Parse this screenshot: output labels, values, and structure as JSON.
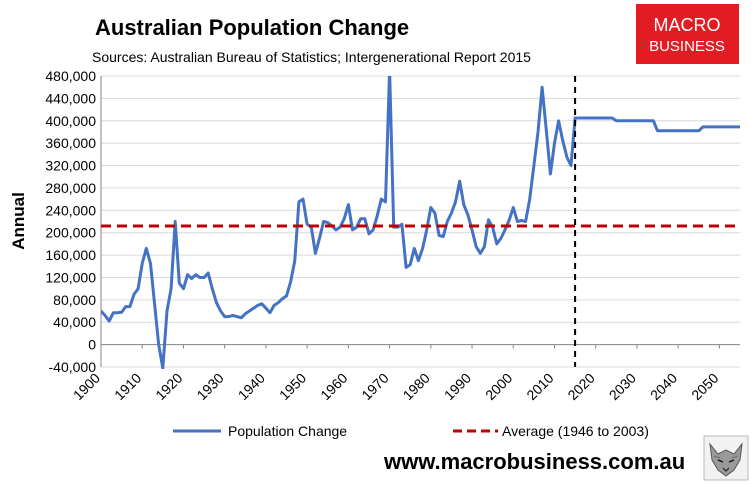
{
  "chart_data": {
    "type": "line",
    "title": "Australian Population Change",
    "subtitle": "Sources: Australian Bureau of Statistics; Intergenerational Report 2015",
    "ylabel": "Annual",
    "xlabel": "",
    "xlim": [
      1900,
      2055
    ],
    "ylim": [
      -40000,
      480000
    ],
    "grid": "horizontal",
    "legend_position": "bottom",
    "x_ticks": [
      "1900",
      "1910",
      "1920",
      "1930",
      "1940",
      "1950",
      "1960",
      "1970",
      "1980",
      "1990",
      "2000",
      "2010",
      "2020",
      "2030",
      "2040",
      "2050"
    ],
    "y_ticks": [
      "-40,000",
      "0",
      "40,000",
      "80,000",
      "120,000",
      "160,000",
      "200,000",
      "240,000",
      "280,000",
      "320,000",
      "360,000",
      "400,000",
      "440,000",
      "480,000"
    ],
    "series": [
      {
        "name": "Population Change",
        "color": "#4472c4",
        "style": "solid",
        "points": [
          [
            1900,
            60000
          ],
          [
            1901,
            52000
          ],
          [
            1902,
            42000
          ],
          [
            1903,
            57000
          ],
          [
            1904,
            57000
          ],
          [
            1905,
            58000
          ],
          [
            1906,
            68000
          ],
          [
            1907,
            68000
          ],
          [
            1908,
            90000
          ],
          [
            1909,
            100000
          ],
          [
            1910,
            145000
          ],
          [
            1911,
            172000
          ],
          [
            1912,
            145000
          ],
          [
            1913,
            72000
          ],
          [
            1914,
            0
          ],
          [
            1915,
            -42000
          ],
          [
            1916,
            60000
          ],
          [
            1917,
            100000
          ],
          [
            1918,
            220000
          ],
          [
            1919,
            110000
          ],
          [
            1920,
            100000
          ],
          [
            1921,
            125000
          ],
          [
            1922,
            118000
          ],
          [
            1923,
            125000
          ],
          [
            1924,
            120000
          ],
          [
            1925,
            120000
          ],
          [
            1926,
            128000
          ],
          [
            1927,
            100000
          ],
          [
            1928,
            75000
          ],
          [
            1929,
            60000
          ],
          [
            1930,
            50000
          ],
          [
            1931,
            50000
          ],
          [
            1932,
            52000
          ],
          [
            1933,
            50000
          ],
          [
            1934,
            48000
          ],
          [
            1935,
            55000
          ],
          [
            1936,
            60000
          ],
          [
            1937,
            65000
          ],
          [
            1938,
            70000
          ],
          [
            1939,
            73000
          ],
          [
            1940,
            65000
          ],
          [
            1941,
            57000
          ],
          [
            1942,
            70000
          ],
          [
            1943,
            75000
          ],
          [
            1944,
            82000
          ],
          [
            1945,
            87000
          ],
          [
            1946,
            112000
          ],
          [
            1947,
            150000
          ],
          [
            1948,
            255000
          ],
          [
            1949,
            260000
          ],
          [
            1950,
            215000
          ],
          [
            1951,
            210000
          ],
          [
            1952,
            163000
          ],
          [
            1953,
            190000
          ],
          [
            1954,
            220000
          ],
          [
            1955,
            218000
          ],
          [
            1956,
            212000
          ],
          [
            1957,
            205000
          ],
          [
            1958,
            210000
          ],
          [
            1959,
            225000
          ],
          [
            1960,
            250000
          ],
          [
            1961,
            205000
          ],
          [
            1962,
            210000
          ],
          [
            1963,
            225000
          ],
          [
            1964,
            225000
          ],
          [
            1965,
            198000
          ],
          [
            1966,
            205000
          ],
          [
            1967,
            230000
          ],
          [
            1968,
            260000
          ],
          [
            1969,
            255000
          ],
          [
            1970,
            490000
          ],
          [
            1971,
            210000
          ],
          [
            1972,
            210000
          ],
          [
            1973,
            215000
          ],
          [
            1974,
            138000
          ],
          [
            1975,
            143000
          ],
          [
            1976,
            172000
          ],
          [
            1977,
            150000
          ],
          [
            1978,
            172000
          ],
          [
            1979,
            205000
          ],
          [
            1980,
            245000
          ],
          [
            1981,
            235000
          ],
          [
            1982,
            195000
          ],
          [
            1983,
            193000
          ],
          [
            1984,
            220000
          ],
          [
            1985,
            235000
          ],
          [
            1986,
            255000
          ],
          [
            1987,
            292000
          ],
          [
            1988,
            250000
          ],
          [
            1989,
            232000
          ],
          [
            1990,
            205000
          ],
          [
            1991,
            175000
          ],
          [
            1992,
            163000
          ],
          [
            1993,
            175000
          ],
          [
            1994,
            223000
          ],
          [
            1995,
            210000
          ],
          [
            1996,
            180000
          ],
          [
            1997,
            190000
          ],
          [
            1998,
            205000
          ],
          [
            1999,
            222000
          ],
          [
            2000,
            245000
          ],
          [
            2001,
            220000
          ],
          [
            2002,
            222000
          ],
          [
            2003,
            220000
          ],
          [
            2004,
            260000
          ],
          [
            2005,
            320000
          ],
          [
            2006,
            380000
          ],
          [
            2007,
            460000
          ],
          [
            2008,
            385000
          ],
          [
            2009,
            305000
          ],
          [
            2010,
            360000
          ],
          [
            2011,
            400000
          ],
          [
            2012,
            365000
          ],
          [
            2013,
            335000
          ],
          [
            2014,
            320000
          ],
          [
            2015,
            405000
          ],
          [
            2016,
            405000
          ],
          [
            2017,
            405000
          ],
          [
            2018,
            405000
          ],
          [
            2019,
            405000
          ],
          [
            2020,
            405000
          ],
          [
            2021,
            405000
          ],
          [
            2022,
            405000
          ],
          [
            2023,
            405000
          ],
          [
            2024,
            405000
          ],
          [
            2025,
            400000
          ],
          [
            2026,
            400000
          ],
          [
            2027,
            400000
          ],
          [
            2028,
            400000
          ],
          [
            2029,
            400000
          ],
          [
            2030,
            400000
          ],
          [
            2031,
            400000
          ],
          [
            2032,
            400000
          ],
          [
            2033,
            400000
          ],
          [
            2034,
            400000
          ],
          [
            2035,
            382000
          ],
          [
            2036,
            382000
          ],
          [
            2037,
            382000
          ],
          [
            2038,
            382000
          ],
          [
            2039,
            382000
          ],
          [
            2040,
            382000
          ],
          [
            2041,
            382000
          ],
          [
            2042,
            382000
          ],
          [
            2043,
            382000
          ],
          [
            2044,
            382000
          ],
          [
            2045,
            382000
          ],
          [
            2046,
            389000
          ],
          [
            2047,
            389000
          ],
          [
            2048,
            389000
          ],
          [
            2049,
            389000
          ],
          [
            2050,
            389000
          ],
          [
            2051,
            389000
          ],
          [
            2052,
            389000
          ],
          [
            2053,
            389000
          ],
          [
            2054,
            389000
          ],
          [
            2055,
            389000
          ]
        ]
      },
      {
        "name": "Average (1946 to 2003)",
        "color": "#c00000",
        "style": "dashed",
        "points": [
          [
            1900,
            212000
          ],
          [
            2055,
            212000
          ]
        ]
      }
    ],
    "annotations": [
      {
        "type": "vertical-dashed-line",
        "x": 2015,
        "color": "#000000"
      }
    ]
  },
  "branding": {
    "logo_line1": "MACRO",
    "logo_line2": "BUSINESS",
    "logo_color": "#e31b23",
    "website": "www.macrobusiness.com.au",
    "mascot_icon": "wolf-icon"
  }
}
